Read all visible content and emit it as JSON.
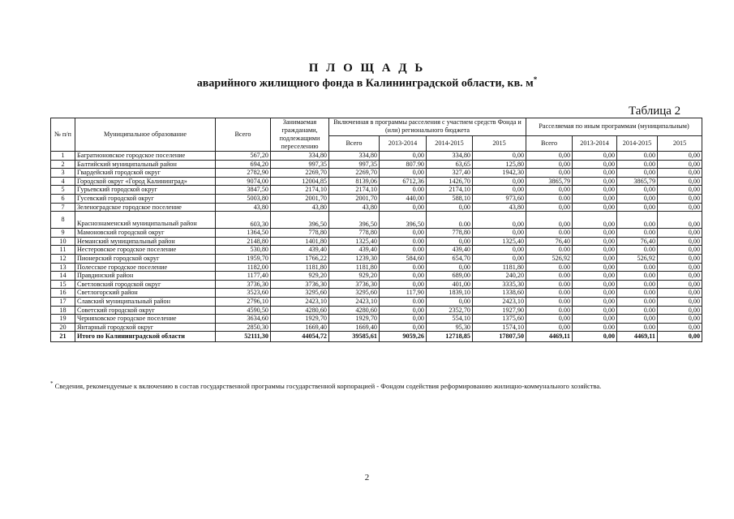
{
  "title": "П Л О Щ А Д Ь",
  "subtitle": "аварийного жилищного фонда в Калининградской области, кв. м",
  "subtitle_mark": "*",
  "table_label": "Таблица 2",
  "headers": {
    "num": "№ п/п",
    "name": "Муниципальное образование",
    "total": "Всего",
    "occupied": "Занимаемая гражданами, подлежащими переселению",
    "included": "Включенная в программы расселения с участием средств Фонда и (или) регионального бюджета",
    "other": "Расселяемая по иным программам (муниципальным)",
    "sub": [
      "Всего",
      "2013-2014",
      "2014-2015",
      "2015",
      "Всего",
      "2013-2014",
      "2014-2015",
      "2015"
    ]
  },
  "rows": [
    [
      "1",
      "Багратионовское городское поселение",
      "567,20",
      "334,80",
      "334,80",
      "0,00",
      "334,80",
      "0,00",
      "0,00",
      "0,00",
      "0.00",
      "0,00"
    ],
    [
      "2",
      "Балтийский муниципальный район",
      "694,20",
      "997,35",
      "997,35",
      "807.90",
      "63,65",
      "125,80",
      "0,00",
      "0,00",
      "0.00",
      "0,00"
    ],
    [
      "3",
      "Гвардейский городской округ",
      "2782,90",
      "2269,70",
      "2269,70",
      "0,00",
      "327,40",
      "1942,30",
      "0,00",
      "0,00",
      "0,00",
      "0,00"
    ],
    [
      "4",
      "Городской округ «Город Калининград»",
      "9074,00",
      "12004,85",
      "8139,06",
      "6712,36",
      "1426,70",
      "0,00",
      "3865,79",
      "0,00",
      "3865,79",
      "0,00"
    ],
    [
      "5",
      "Гурьевский городской округ",
      "3847,50",
      "2174,10",
      "2174,10",
      "0.00",
      "2174,10",
      "0,00",
      "0,00",
      "0,00",
      "0,00",
      "0,00"
    ],
    [
      "6",
      "Гусевский городской округ",
      "5003,80",
      "2001,70",
      "2001,70",
      "440,00",
      "588,10",
      "973,60",
      "0.00",
      "0,00",
      "0,00",
      "0,00"
    ],
    [
      "7",
      "Зеленоградское городское поселение",
      "43,80",
      "43,80",
      "43,80",
      "0,00",
      "0,00",
      "43,80",
      "0,00",
      "0,00",
      "0,00",
      "0,00"
    ],
    [
      "8",
      "Краснознаменский муниципальный район",
      "603,30",
      "396,50",
      "396,50",
      "396,50",
      "0.00",
      "0,00",
      "0,00",
      "0,00",
      "0.00",
      "0,00"
    ],
    [
      "9",
      "Мамоновский городской округ",
      "1364,50",
      "778,80",
      "778,80",
      "0,00",
      "778,80",
      "0,00",
      "0.00",
      "0,00",
      "0.00",
      "0,00"
    ],
    [
      "10",
      "Неманский муниципальный район",
      "2148,80",
      "1401,80",
      "1325,40",
      "0.00",
      "0,00",
      "1325,40",
      "76,40",
      "0,00",
      "76,40",
      "0,00"
    ],
    [
      "11",
      "Нестеровское городское поселение",
      "530,80",
      "439,40",
      "439,40",
      "0.00",
      "439,40",
      "0,00",
      "0.00",
      "0,00",
      "0.00",
      "0,00"
    ],
    [
      "12",
      "Пионерский городской округ",
      "1959,70",
      "1766,22",
      "1239,30",
      "584,60",
      "654,70",
      "0,00",
      "526,92",
      "0,00",
      "526,92",
      "0,00"
    ],
    [
      "13",
      "Полесское городское поселение",
      "1182,00",
      "1181,80",
      "1181,80",
      "0.00",
      "0,00",
      "1181,80",
      "0.00",
      "0,00",
      "0.00",
      "0,00"
    ],
    [
      "14",
      "Правдинский район",
      "1177,40",
      "929,20",
      "929,20",
      "0,00",
      "689,00",
      "240,20",
      "0.00",
      "0,00",
      "0.00",
      "0,00"
    ],
    [
      "15",
      "Светловский городской округ",
      "3736,30",
      "3736,30",
      "3736,30",
      "0,00",
      "401,00",
      "3335,30",
      "0.00",
      "0,00",
      "0.00",
      "0,00"
    ],
    [
      "16",
      "Светлогорский район",
      "3523,60",
      "3295,60",
      "3295,60",
      "117,90",
      "1839,10",
      "1338,60",
      "0.00",
      "0,00",
      "0.00",
      "0,00"
    ],
    [
      "17",
      "Славский муниципальный район",
      "2796,10",
      "2423,10",
      "2423,10",
      "0.00",
      "0,00",
      "2423,10",
      "0.00",
      "0,00",
      "0.00",
      "0,00"
    ],
    [
      "18",
      "Советский городской округ",
      "4590,50",
      "4280,60",
      "4280,60",
      "0,00",
      "2352,70",
      "1927,90",
      "0.00",
      "0,00",
      "0.00",
      "0,00"
    ],
    [
      "19",
      "Черняховское городское поселение",
      "3634,60",
      "1929,70",
      "1929,70",
      "0,00",
      "554,10",
      "1375,60",
      "0,00",
      "0,00",
      "0,00",
      "0,00"
    ],
    [
      "20",
      "Янтарный городской округ",
      "2850,30",
      "1669,40",
      "1669,40",
      "0,00",
      "95,30",
      "1574,10",
      "0,00",
      "0.00",
      "0.00",
      "0,00"
    ]
  ],
  "total_row": [
    "21",
    "Итого по Калининградской области",
    "52111,30",
    "44054,72",
    "39585,61",
    "9059,26",
    "12718,85",
    "17807,50",
    "4469,11",
    "0,00",
    "4469,11",
    "0,00"
  ],
  "footnote_mark": "*",
  "footnote": "Сведения, рекомендуемые к включению в состав государственной программы государственной корпорацией - Фондом содействия реформированию жилищно-коммунального хозяйства.",
  "page_number": "2"
}
